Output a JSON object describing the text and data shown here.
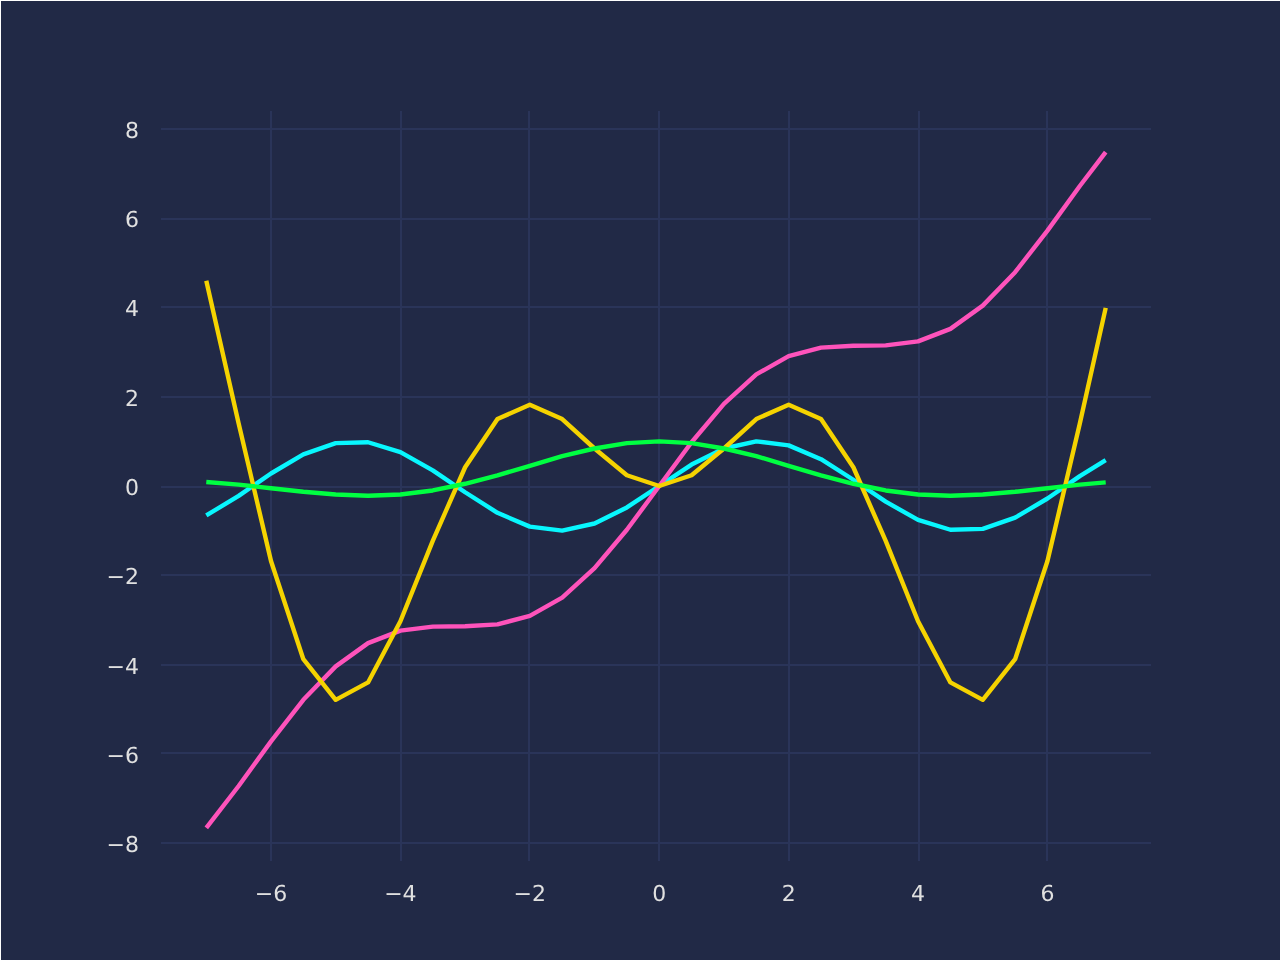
{
  "chart_data": {
    "type": "line",
    "x": [
      -7,
      -6.5,
      -6,
      -5.5,
      -5,
      -4.5,
      -4,
      -3.5,
      -3,
      -2.5,
      -2,
      -1.5,
      -1,
      -0.5,
      0,
      0.5,
      1,
      1.5,
      2,
      2.5,
      3,
      3.5,
      4,
      4.5,
      5,
      5.5,
      6,
      6.5,
      6.9
    ],
    "series": [
      {
        "color": "#08f7fe",
        "values": [
          -0.66,
          -0.22,
          0.28,
          0.71,
          0.96,
          0.98,
          0.76,
          0.35,
          -0.14,
          -0.6,
          -0.91,
          -1.0,
          -0.84,
          -0.48,
          0,
          0.48,
          0.84,
          1.0,
          0.91,
          0.6,
          0.14,
          -0.35,
          -0.76,
          -0.98,
          -0.96,
          -0.71,
          -0.28,
          0.22,
          0.58
        ]
      },
      {
        "color": "#fe53bb",
        "values": [
          -7.66,
          -6.72,
          -5.72,
          -4.79,
          -4.04,
          -3.52,
          -3.24,
          -3.15,
          -3.14,
          -3.1,
          -2.91,
          -2.5,
          -1.84,
          -0.98,
          0,
          0.98,
          1.84,
          2.5,
          2.91,
          3.1,
          3.14,
          3.15,
          3.24,
          3.52,
          4.04,
          4.79,
          5.72,
          6.72,
          7.48
        ]
      },
      {
        "color": "#f5d300",
        "values": [
          4.6,
          1.4,
          -1.68,
          -3.88,
          -4.79,
          -4.4,
          -3.03,
          -1.23,
          0.42,
          1.5,
          1.82,
          1.5,
          0.84,
          0.24,
          0,
          0.24,
          0.84,
          1.5,
          1.82,
          1.5,
          0.42,
          -1.23,
          -3.03,
          -4.4,
          -4.79,
          -3.88,
          -1.68,
          1.4,
          3.99
        ]
      },
      {
        "color": "#00ff41",
        "values": [
          0.09,
          0.03,
          -0.05,
          -0.13,
          -0.19,
          -0.22,
          -0.19,
          -0.1,
          0.05,
          0.24,
          0.45,
          0.67,
          0.84,
          0.96,
          1,
          0.96,
          0.84,
          0.67,
          0.45,
          0.24,
          0.05,
          -0.1,
          -0.19,
          -0.22,
          -0.19,
          -0.13,
          -0.05,
          0.03,
          0.08
        ]
      }
    ],
    "xlim": [
      -7.7,
      7.6
    ],
    "ylim": [
      -8.4,
      8.4
    ],
    "xticks": [
      {
        "value": -6,
        "label": "−6"
      },
      {
        "value": -4,
        "label": "−4"
      },
      {
        "value": -2,
        "label": "−2"
      },
      0,
      2,
      4,
      6
    ],
    "yticks": [
      {
        "value": -8,
        "label": "−8"
      },
      {
        "value": -6,
        "label": "−6"
      },
      {
        "value": -4,
        "label": "−4"
      },
      {
        "value": -2,
        "label": "−2"
      },
      0,
      2,
      4,
      6,
      8
    ],
    "grid": true,
    "line_style": "solid"
  }
}
